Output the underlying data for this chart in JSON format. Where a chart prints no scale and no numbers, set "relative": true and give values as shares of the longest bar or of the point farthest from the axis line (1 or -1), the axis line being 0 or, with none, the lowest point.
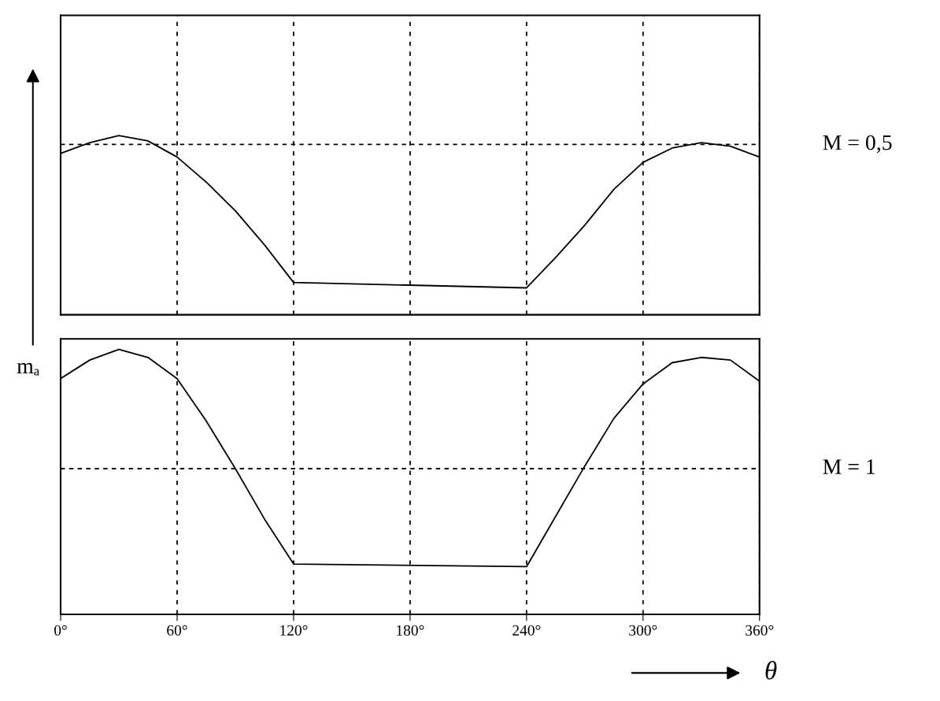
{
  "chart_data": [
    {
      "type": "line",
      "relative": true,
      "x": [
        0,
        15,
        30,
        45,
        60,
        75,
        90,
        105,
        120,
        240,
        255,
        270,
        285,
        300,
        315,
        330,
        345,
        360
      ],
      "series": [
        {
          "color": "#000000",
          "values": [
            0.9,
            0.96,
            1.0,
            0.97,
            0.88,
            0.74,
            0.58,
            0.39,
            0.18,
            0.15,
            0.32,
            0.5,
            0.7,
            0.85,
            0.93,
            0.96,
            0.94,
            0.88
          ]
        }
      ],
      "xlim": [
        0,
        360
      ],
      "xticks": [
        0,
        60,
        120,
        180,
        240,
        300,
        360
      ],
      "grid": "x",
      "tick_labels": false,
      "line_style": "solid",
      "marker": "none",
      "annotations": [
        "M = 0,5"
      ],
      "ref_lines": [
        {
          "axis": "y",
          "value": 0.95,
          "color": "#000000",
          "line_style": "dashed"
        }
      ]
    },
    {
      "type": "line",
      "relative": true,
      "x": [
        0,
        15,
        30,
        45,
        60,
        75,
        90,
        105,
        120,
        240,
        255,
        270,
        285,
        300,
        315,
        330,
        345,
        360
      ],
      "series": [
        {
          "color": "#000000",
          "values": [
            0.89,
            0.96,
            1.0,
            0.97,
            0.89,
            0.73,
            0.55,
            0.36,
            0.19,
            0.18,
            0.37,
            0.56,
            0.74,
            0.87,
            0.95,
            0.97,
            0.96,
            0.88
          ]
        }
      ],
      "xlim": [
        0,
        360
      ],
      "xticks": [
        {
          "value": 0,
          "label": "0°"
        },
        {
          "value": 60,
          "label": "60°"
        },
        {
          "value": 120,
          "label": "120°"
        },
        {
          "value": 180,
          "label": "180°"
        },
        {
          "value": 240,
          "label": "240°"
        },
        {
          "value": 300,
          "label": "300°"
        },
        {
          "value": 360,
          "label": "360°"
        }
      ],
      "grid": "x",
      "tick_labels": "x",
      "line_style": "solid",
      "marker": "none",
      "xlabel": "θ",
      "ylabel": "mₐ",
      "annotations": [
        "M = 1"
      ],
      "ref_lines": [
        {
          "axis": "y",
          "value": 0.55,
          "color": "#000000",
          "line_style": "dashed"
        }
      ]
    }
  ]
}
